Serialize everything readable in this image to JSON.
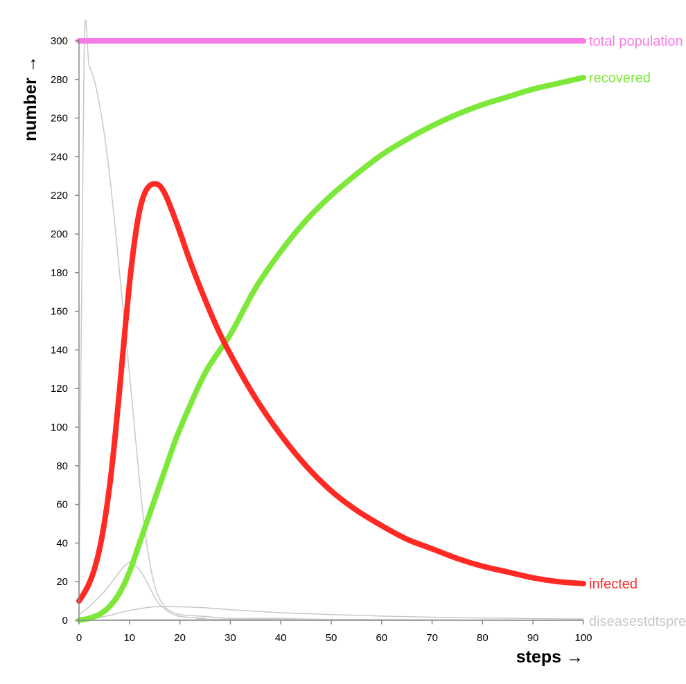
{
  "chart_data": {
    "type": "line",
    "xlabel": "steps →",
    "ylabel": "number →",
    "xlim": [
      0,
      100
    ],
    "ylim": [
      0,
      300
    ],
    "xticks": [
      0,
      10,
      20,
      30,
      40,
      50,
      60,
      70,
      80,
      90,
      100
    ],
    "yticks": [
      0,
      20,
      40,
      60,
      80,
      100,
      120,
      140,
      160,
      180,
      200,
      220,
      240,
      260,
      280,
      300
    ],
    "grid": false,
    "legend": "end-of-line labels",
    "series": [
      {
        "name": "total population",
        "color": "#f77be4",
        "emphasis": true,
        "points": [
          [
            0,
            300
          ],
          [
            100,
            300
          ]
        ]
      },
      {
        "name": "recovered",
        "color": "#7de83a",
        "emphasis": true,
        "points": [
          [
            0,
            0
          ],
          [
            2,
            1
          ],
          [
            4,
            3
          ],
          [
            6,
            7
          ],
          [
            8,
            14
          ],
          [
            10,
            25
          ],
          [
            12,
            40
          ],
          [
            14,
            55
          ],
          [
            16,
            70
          ],
          [
            18,
            85
          ],
          [
            20,
            99
          ],
          [
            25,
            128
          ],
          [
            30,
            148
          ],
          [
            35,
            172
          ],
          [
            40,
            191
          ],
          [
            45,
            207
          ],
          [
            50,
            220
          ],
          [
            55,
            231
          ],
          [
            60,
            241
          ],
          [
            65,
            249
          ],
          [
            70,
            256
          ],
          [
            75,
            262
          ],
          [
            80,
            267
          ],
          [
            85,
            271
          ],
          [
            90,
            275
          ],
          [
            95,
            278
          ],
          [
            100,
            281
          ]
        ]
      },
      {
        "name": "infected",
        "color": "#ff2a24",
        "emphasis": true,
        "points": [
          [
            0,
            10
          ],
          [
            1,
            14
          ],
          [
            2,
            19
          ],
          [
            3,
            26
          ],
          [
            4,
            36
          ],
          [
            5,
            50
          ],
          [
            6,
            68
          ],
          [
            7,
            91
          ],
          [
            8,
            118
          ],
          [
            9,
            147
          ],
          [
            10,
            174
          ],
          [
            11,
            196
          ],
          [
            12,
            212
          ],
          [
            13,
            221
          ],
          [
            14,
            225
          ],
          [
            15,
            226
          ],
          [
            16,
            225
          ],
          [
            17,
            221
          ],
          [
            18,
            215
          ],
          [
            20,
            201
          ],
          [
            22,
            186
          ],
          [
            25,
            166
          ],
          [
            28,
            148
          ],
          [
            31,
            133
          ],
          [
            35,
            115
          ],
          [
            40,
            96
          ],
          [
            45,
            80
          ],
          [
            50,
            67
          ],
          [
            55,
            57
          ],
          [
            60,
            49
          ],
          [
            65,
            42
          ],
          [
            70,
            37
          ],
          [
            75,
            32
          ],
          [
            80,
            28
          ],
          [
            85,
            25
          ],
          [
            90,
            22
          ],
          [
            95,
            20
          ],
          [
            100,
            19
          ]
        ]
      },
      {
        "name": "",
        "color": "#c8c8c8",
        "emphasis": false,
        "points": [
          [
            0,
            3
          ],
          [
            1,
            290
          ],
          [
            2,
            287
          ],
          [
            3,
            280
          ],
          [
            4,
            268
          ],
          [
            5,
            252
          ],
          [
            6,
            232
          ],
          [
            7,
            208
          ],
          [
            8,
            181
          ],
          [
            9,
            155
          ],
          [
            10,
            128
          ],
          [
            11,
            100
          ],
          [
            12,
            72
          ],
          [
            13,
            48
          ],
          [
            14,
            30
          ],
          [
            15,
            18
          ],
          [
            16,
            11
          ],
          [
            17,
            7
          ],
          [
            18,
            5
          ],
          [
            20,
            3
          ],
          [
            25,
            2
          ],
          [
            30,
            1
          ],
          [
            40,
            1
          ],
          [
            50,
            0.5
          ],
          [
            100,
            0
          ]
        ]
      },
      {
        "name": "",
        "color": "#c8c8c8",
        "emphasis": false,
        "points": [
          [
            0,
            3
          ],
          [
            2,
            7
          ],
          [
            4,
            12
          ],
          [
            6,
            18
          ],
          [
            8,
            25
          ],
          [
            9,
            28
          ],
          [
            10,
            30
          ],
          [
            11,
            29
          ],
          [
            12,
            26
          ],
          [
            13,
            22
          ],
          [
            14,
            17
          ],
          [
            15,
            12
          ],
          [
            16,
            8
          ],
          [
            17,
            6
          ],
          [
            18,
            4
          ],
          [
            20,
            2
          ],
          [
            25,
            1
          ],
          [
            30,
            0.5
          ],
          [
            100,
            0
          ]
        ]
      },
      {
        "name": "",
        "color": "#c8c8c8",
        "emphasis": false,
        "points": [
          [
            0,
            0
          ],
          [
            3,
            1
          ],
          [
            6,
            2.5
          ],
          [
            9,
            4.5
          ],
          [
            12,
            6
          ],
          [
            15,
            7
          ],
          [
            20,
            7
          ],
          [
            25,
            6.5
          ],
          [
            30,
            5.5
          ],
          [
            40,
            4
          ],
          [
            50,
            3
          ],
          [
            60,
            2.2
          ],
          [
            70,
            1.6
          ],
          [
            80,
            1.2
          ],
          [
            90,
            0.9
          ],
          [
            100,
            0.7
          ]
        ]
      },
      {
        "name": "",
        "color": "#c8c8c8",
        "emphasis": false,
        "points": [
          [
            0,
            0
          ],
          [
            10,
            0.3
          ],
          [
            20,
            0.3
          ],
          [
            40,
            0.2
          ],
          [
            100,
            0.1
          ]
        ]
      }
    ],
    "overlapping_label_text": "diseasestdtsprei"
  }
}
